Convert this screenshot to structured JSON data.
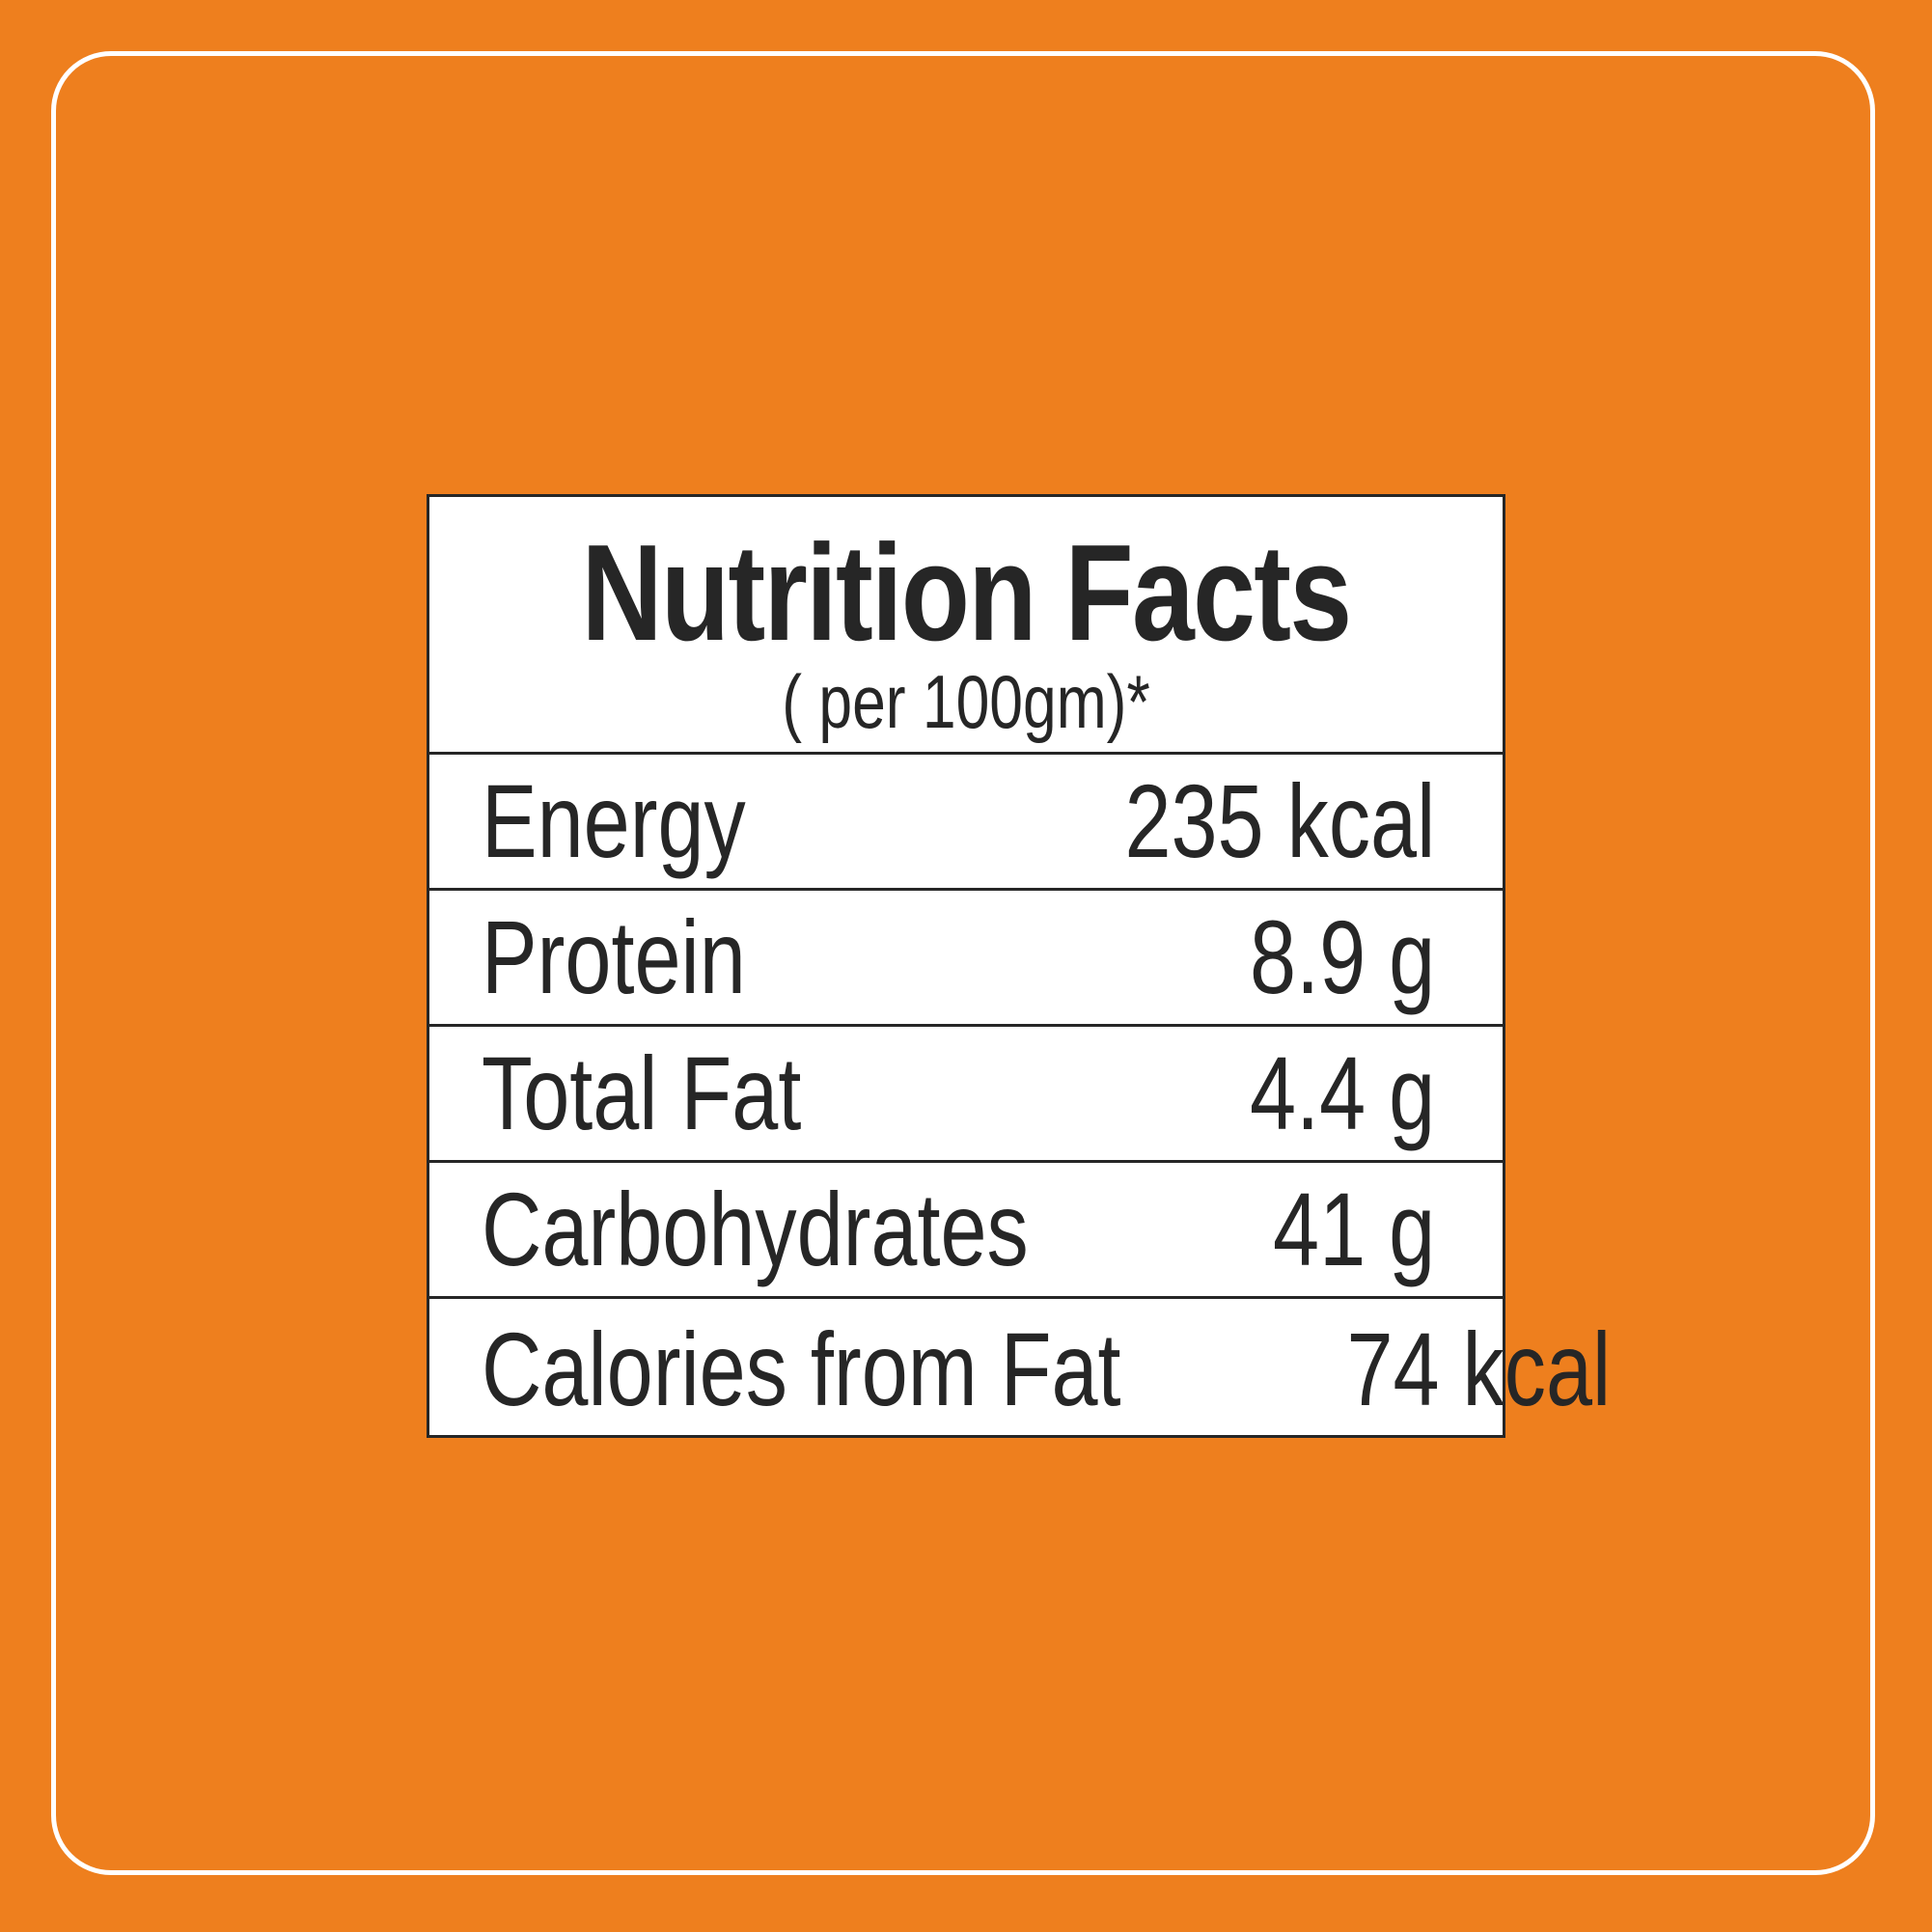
{
  "title": "Nutrition Facts",
  "subtitle": "( per 100gm)*",
  "rows": [
    {
      "label": "Energy",
      "value": "235 kcal"
    },
    {
      "label": "Protein",
      "value": "8.9 g"
    },
    {
      "label": "Total Fat",
      "value": "4.4 g"
    },
    {
      "label": "Carbohydrates",
      "value": "41 g"
    },
    {
      "label": "Calories from Fat",
      "value": "74 kcal"
    }
  ],
  "colors": {
    "background": "#EE7F1E",
    "text": "#262626",
    "panel": "#FFFFFF"
  }
}
